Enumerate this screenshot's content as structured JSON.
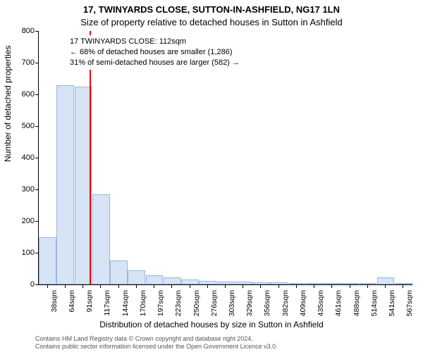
{
  "title_line1": "17, TWINYARDS CLOSE, SUTTON-IN-ASHFIELD, NG17 1LN",
  "title_line2": "Size of property relative to detached houses in Sutton in Ashfield",
  "ylabel": "Number of detached properties",
  "xlabel": "Distribution of detached houses by size in Sutton in Ashfield",
  "footer_line1": "Contains HM Land Registry data © Crown copyright and database right 2024.",
  "footer_line2": "Contains public sector information licensed under the Open Government Licence v3.0.",
  "chart": {
    "type": "histogram",
    "ylim": [
      0,
      800
    ],
    "ytick_step": 100,
    "yticks": [
      0,
      100,
      200,
      300,
      400,
      500,
      600,
      700,
      800
    ],
    "xticks": [
      "38sqm",
      "64sqm",
      "91sqm",
      "117sqm",
      "144sqm",
      "170sqm",
      "197sqm",
      "223sqm",
      "250sqm",
      "276sqm",
      "303sqm",
      "329sqm",
      "356sqm",
      "382sqm",
      "409sqm",
      "435sqm",
      "461sqm",
      "488sqm",
      "514sqm",
      "541sqm",
      "567sqm"
    ],
    "values": [
      150,
      630,
      625,
      285,
      75,
      45,
      28,
      22,
      15,
      12,
      10,
      8,
      7,
      6,
      5,
      5,
      4,
      4,
      4,
      22,
      2
    ],
    "bar_fill": "#d6e4f5",
    "bar_border": "#9ab7de",
    "background_color": "#ffffff",
    "axis_color": "#000000",
    "marker": {
      "position_index": 2.85,
      "color": "#ff0000"
    },
    "info_box": {
      "line1": "17 TWINYARDS CLOSE: 112sqm",
      "line2": "← 68% of detached houses are smaller (1,286)",
      "line3": "31% of semi-detached houses are larger (582) →"
    },
    "title_fontsize": 13,
    "label_fontsize": 12,
    "tick_fontsize": 11,
    "footer_fontsize": 9
  }
}
